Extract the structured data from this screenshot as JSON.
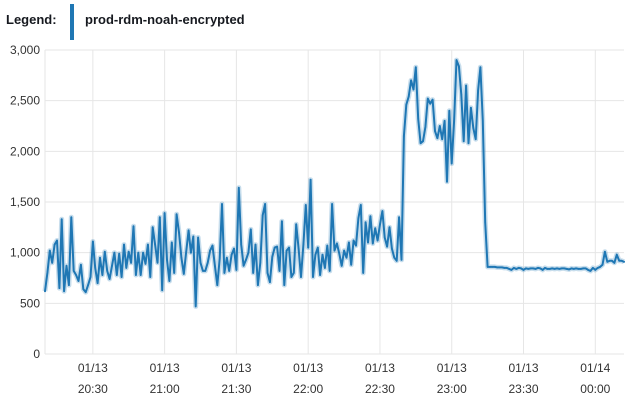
{
  "legend": {
    "label": "Legend:",
    "series_name": "prod-rdm-noah-encrypted"
  },
  "colors": {
    "series": "#1f77b4",
    "grid": "#e6e6e6",
    "axis": "#333333"
  },
  "chart_data": {
    "type": "line",
    "title": "",
    "xlabel": "",
    "ylabel": "",
    "ylim": [
      0,
      3000
    ],
    "yticks": [
      {
        "value": 0,
        "label": "0"
      },
      {
        "value": 500,
        "label": "500"
      },
      {
        "value": 1000,
        "label": "1,000"
      },
      {
        "value": 1500,
        "label": "1,500"
      },
      {
        "value": 2000,
        "label": "2,000"
      },
      {
        "value": 2500,
        "label": "2,500"
      },
      {
        "value": 3000,
        "label": "3,000"
      }
    ],
    "xlim": [
      "2024-01-13 20:10",
      "2024-01-14 00:12"
    ],
    "xticks": [
      {
        "value": "2024-01-13 20:30",
        "line1": "01/13",
        "line2": "20:30"
      },
      {
        "value": "2024-01-13 21:00",
        "line1": "01/13",
        "line2": "21:00"
      },
      {
        "value": "2024-01-13 21:30",
        "line1": "01/13",
        "line2": "21:30"
      },
      {
        "value": "2024-01-13 22:00",
        "line1": "01/13",
        "line2": "22:00"
      },
      {
        "value": "2024-01-13 22:30",
        "line1": "01/13",
        "line2": "22:30"
      },
      {
        "value": "2024-01-13 23:00",
        "line1": "01/13",
        "line2": "23:00"
      },
      {
        "value": "2024-01-13 23:30",
        "line1": "01/13",
        "line2": "23:30"
      },
      {
        "value": "2024-01-14 00:00",
        "line1": "01/14",
        "line2": "00:00"
      }
    ],
    "grid": true,
    "legend_position": "top-left",
    "series": [
      {
        "name": "prod-rdm-noah-encrypted",
        "points": [
          [
            "2024-01-13 20:10",
            620
          ],
          [
            "2024-01-13 20:11",
            800
          ],
          [
            "2024-01-13 20:12",
            1020
          ],
          [
            "2024-01-13 20:13",
            900
          ],
          [
            "2024-01-13 20:14",
            1080
          ],
          [
            "2024-01-13 20:15",
            1120
          ],
          [
            "2024-01-13 20:16",
            650
          ],
          [
            "2024-01-13 20:17",
            1330
          ],
          [
            "2024-01-13 20:18",
            620
          ],
          [
            "2024-01-13 20:19",
            870
          ],
          [
            "2024-01-13 20:20",
            680
          ],
          [
            "2024-01-13 20:21",
            1350
          ],
          [
            "2024-01-13 20:22",
            820
          ],
          [
            "2024-01-13 20:23",
            780
          ],
          [
            "2024-01-13 20:24",
            720
          ],
          [
            "2024-01-13 20:25",
            880
          ],
          [
            "2024-01-13 20:26",
            640
          ],
          [
            "2024-01-13 20:27",
            610
          ],
          [
            "2024-01-13 20:28",
            680
          ],
          [
            "2024-01-13 20:29",
            760
          ],
          [
            "2024-01-13 20:30",
            1110
          ],
          [
            "2024-01-13 20:31",
            850
          ],
          [
            "2024-01-13 20:32",
            700
          ],
          [
            "2024-01-13 20:33",
            950
          ],
          [
            "2024-01-13 20:34",
            780
          ],
          [
            "2024-01-13 20:35",
            1010
          ],
          [
            "2024-01-13 20:36",
            820
          ],
          [
            "2024-01-13 20:37",
            740
          ],
          [
            "2024-01-13 20:38",
            870
          ],
          [
            "2024-01-13 20:39",
            1000
          ],
          [
            "2024-01-13 20:40",
            780
          ],
          [
            "2024-01-13 20:41",
            990
          ],
          [
            "2024-01-13 20:42",
            760
          ],
          [
            "2024-01-13 20:43",
            1080
          ],
          [
            "2024-01-13 20:44",
            850
          ],
          [
            "2024-01-13 20:45",
            1010
          ],
          [
            "2024-01-13 20:46",
            900
          ],
          [
            "2024-01-13 20:47",
            1260
          ],
          [
            "2024-01-13 20:48",
            780
          ],
          [
            "2024-01-13 20:49",
            1000
          ],
          [
            "2024-01-13 20:50",
            780
          ],
          [
            "2024-01-13 20:51",
            1000
          ],
          [
            "2024-01-13 20:52",
            890
          ],
          [
            "2024-01-13 20:53",
            1080
          ],
          [
            "2024-01-13 20:54",
            760
          ],
          [
            "2024-01-13 20:55",
            1250
          ],
          [
            "2024-01-13 20:56",
            1080
          ],
          [
            "2024-01-13 20:57",
            900
          ],
          [
            "2024-01-13 20:58",
            1350
          ],
          [
            "2024-01-13 20:59",
            630
          ],
          [
            "2024-01-13 21:00",
            1390
          ],
          [
            "2024-01-13 21:01",
            930
          ],
          [
            "2024-01-13 21:02",
            720
          ],
          [
            "2024-01-13 21:03",
            1100
          ],
          [
            "2024-01-13 21:04",
            800
          ],
          [
            "2024-01-13 21:05",
            1380
          ],
          [
            "2024-01-13 21:06",
            1200
          ],
          [
            "2024-01-13 21:07",
            950
          ],
          [
            "2024-01-13 21:08",
            790
          ],
          [
            "2024-01-13 21:09",
            1010
          ],
          [
            "2024-01-13 21:10",
            1220
          ],
          [
            "2024-01-13 21:11",
            1000
          ],
          [
            "2024-01-13 21:12",
            1160
          ],
          [
            "2024-01-13 21:13",
            470
          ],
          [
            "2024-01-13 21:14",
            1150
          ],
          [
            "2024-01-13 21:15",
            900
          ],
          [
            "2024-01-13 21:16",
            820
          ],
          [
            "2024-01-13 21:17",
            820
          ],
          [
            "2024-01-13 21:18",
            900
          ],
          [
            "2024-01-13 21:19",
            1020
          ],
          [
            "2024-01-13 21:20",
            1070
          ],
          [
            "2024-01-13 21:21",
            870
          ],
          [
            "2024-01-13 21:22",
            680
          ],
          [
            "2024-01-13 21:23",
            940
          ],
          [
            "2024-01-13 21:24",
            1480
          ],
          [
            "2024-01-13 21:25",
            800
          ],
          [
            "2024-01-13 21:26",
            950
          ],
          [
            "2024-01-13 21:27",
            820
          ],
          [
            "2024-01-13 21:28",
            980
          ],
          [
            "2024-01-13 21:29",
            1040
          ],
          [
            "2024-01-13 21:30",
            830
          ],
          [
            "2024-01-13 21:31",
            1640
          ],
          [
            "2024-01-13 21:32",
            1080
          ],
          [
            "2024-01-13 21:33",
            870
          ],
          [
            "2024-01-13 21:34",
            930
          ],
          [
            "2024-01-13 21:35",
            1000
          ],
          [
            "2024-01-13 21:36",
            1230
          ],
          [
            "2024-01-13 21:37",
            800
          ],
          [
            "2024-01-13 21:38",
            1080
          ],
          [
            "2024-01-13 21:39",
            680
          ],
          [
            "2024-01-13 21:40",
            900
          ],
          [
            "2024-01-13 21:41",
            1370
          ],
          [
            "2024-01-13 21:42",
            1480
          ],
          [
            "2024-01-13 21:43",
            800
          ],
          [
            "2024-01-13 21:44",
            710
          ],
          [
            "2024-01-13 21:45",
            960
          ],
          [
            "2024-01-13 21:46",
            1050
          ],
          [
            "2024-01-13 21:47",
            1060
          ],
          [
            "2024-01-13 21:48",
            820
          ],
          [
            "2024-01-13 21:49",
            1310
          ],
          [
            "2024-01-13 21:50",
            680
          ],
          [
            "2024-01-13 21:51",
            1020
          ],
          [
            "2024-01-13 21:52",
            1050
          ],
          [
            "2024-01-13 21:53",
            760
          ],
          [
            "2024-01-13 21:54",
            800
          ],
          [
            "2024-01-13 21:55",
            1280
          ],
          [
            "2024-01-13 21:56",
            1040
          ],
          [
            "2024-01-13 21:57",
            760
          ],
          [
            "2024-01-13 21:58",
            1080
          ],
          [
            "2024-01-13 21:59",
            1470
          ],
          [
            "2024-01-13 22:00",
            1050
          ],
          [
            "2024-01-13 22:01",
            1720
          ],
          [
            "2024-01-13 22:02",
            760
          ],
          [
            "2024-01-13 22:03",
            980
          ],
          [
            "2024-01-13 22:04",
            1050
          ],
          [
            "2024-01-13 22:05",
            780
          ],
          [
            "2024-01-13 22:06",
            980
          ],
          [
            "2024-01-13 22:07",
            850
          ],
          [
            "2024-01-13 22:08",
            1070
          ],
          [
            "2024-01-13 22:09",
            820
          ],
          [
            "2024-01-13 22:10",
            1480
          ],
          [
            "2024-01-13 22:11",
            1020
          ],
          [
            "2024-01-13 22:12",
            1090
          ],
          [
            "2024-01-13 22:13",
            990
          ],
          [
            "2024-01-13 22:14",
            870
          ],
          [
            "2024-01-13 22:15",
            1020
          ],
          [
            "2024-01-13 22:16",
            950
          ],
          [
            "2024-01-13 22:17",
            1100
          ],
          [
            "2024-01-13 22:18",
            880
          ],
          [
            "2024-01-13 22:19",
            1120
          ],
          [
            "2024-01-13 22:20",
            1070
          ],
          [
            "2024-01-13 22:21",
            1340
          ],
          [
            "2024-01-13 22:22",
            1470
          ],
          [
            "2024-01-13 22:23",
            800
          ],
          [
            "2024-01-13 22:24",
            1300
          ],
          [
            "2024-01-13 22:25",
            1100
          ],
          [
            "2024-01-13 22:26",
            1360
          ],
          [
            "2024-01-13 22:27",
            1090
          ],
          [
            "2024-01-13 22:28",
            1240
          ],
          [
            "2024-01-13 22:29",
            1120
          ],
          [
            "2024-01-13 22:30",
            1280
          ],
          [
            "2024-01-13 22:31",
            1410
          ],
          [
            "2024-01-13 22:32",
            1150
          ],
          [
            "2024-01-13 22:33",
            1060
          ],
          [
            "2024-01-13 22:34",
            1250
          ],
          [
            "2024-01-13 22:35",
            1040
          ],
          [
            "2024-01-13 22:36",
            950
          ],
          [
            "2024-01-13 22:37",
            920
          ],
          [
            "2024-01-13 22:38",
            1350
          ],
          [
            "2024-01-13 22:39",
            930
          ],
          [
            "2024-01-13 22:40",
            2150
          ],
          [
            "2024-01-13 22:41",
            2460
          ],
          [
            "2024-01-13 22:42",
            2540
          ],
          [
            "2024-01-13 22:43",
            2700
          ],
          [
            "2024-01-13 22:44",
            2610
          ],
          [
            "2024-01-13 22:45",
            2830
          ],
          [
            "2024-01-13 22:46",
            2320
          ],
          [
            "2024-01-13 22:47",
            2080
          ],
          [
            "2024-01-13 22:48",
            2100
          ],
          [
            "2024-01-13 22:49",
            2240
          ],
          [
            "2024-01-13 22:50",
            2520
          ],
          [
            "2024-01-13 22:51",
            2470
          ],
          [
            "2024-01-13 22:52",
            2510
          ],
          [
            "2024-01-13 22:53",
            2200
          ],
          [
            "2024-01-13 22:54",
            2130
          ],
          [
            "2024-01-13 22:55",
            2250
          ],
          [
            "2024-01-13 22:56",
            2120
          ],
          [
            "2024-01-13 22:57",
            2300
          ],
          [
            "2024-01-13 22:58",
            1700
          ],
          [
            "2024-01-13 22:59",
            2400
          ],
          [
            "2024-01-13 23:00",
            1880
          ],
          [
            "2024-01-13 23:01",
            2300
          ],
          [
            "2024-01-13 23:02",
            2900
          ],
          [
            "2024-01-13 23:03",
            2840
          ],
          [
            "2024-01-13 23:04",
            2560
          ],
          [
            "2024-01-13 23:05",
            2100
          ],
          [
            "2024-01-13 23:06",
            2650
          ],
          [
            "2024-01-13 23:07",
            2080
          ],
          [
            "2024-01-13 23:08",
            2430
          ],
          [
            "2024-01-13 23:09",
            2230
          ],
          [
            "2024-01-13 23:10",
            2120
          ],
          [
            "2024-01-13 23:11",
            2600
          ],
          [
            "2024-01-13 23:12",
            2830
          ],
          [
            "2024-01-13 23:13",
            2300
          ],
          [
            "2024-01-13 23:14",
            1300
          ],
          [
            "2024-01-13 23:15",
            860
          ],
          [
            "2024-01-13 23:16",
            860
          ],
          [
            "2024-01-13 23:17",
            860
          ],
          [
            "2024-01-13 23:18",
            860
          ],
          [
            "2024-01-13 23:19",
            855
          ],
          [
            "2024-01-13 23:20",
            855
          ],
          [
            "2024-01-13 23:21",
            855
          ],
          [
            "2024-01-13 23:22",
            850
          ],
          [
            "2024-01-13 23:23",
            850
          ],
          [
            "2024-01-13 23:24",
            840
          ],
          [
            "2024-01-13 23:25",
            830
          ],
          [
            "2024-01-13 23:26",
            850
          ],
          [
            "2024-01-13 23:27",
            840
          ],
          [
            "2024-01-13 23:28",
            850
          ],
          [
            "2024-01-13 23:29",
            845
          ],
          [
            "2024-01-13 23:30",
            830
          ],
          [
            "2024-01-13 23:31",
            845
          ],
          [
            "2024-01-13 23:32",
            840
          ],
          [
            "2024-01-13 23:33",
            845
          ],
          [
            "2024-01-13 23:34",
            845
          ],
          [
            "2024-01-13 23:35",
            840
          ],
          [
            "2024-01-13 23:36",
            850
          ],
          [
            "2024-01-13 23:37",
            845
          ],
          [
            "2024-01-13 23:38",
            830
          ],
          [
            "2024-01-13 23:39",
            850
          ],
          [
            "2024-01-13 23:40",
            840
          ],
          [
            "2024-01-13 23:41",
            840
          ],
          [
            "2024-01-13 23:42",
            845
          ],
          [
            "2024-01-13 23:43",
            840
          ],
          [
            "2024-01-13 23:44",
            845
          ],
          [
            "2024-01-13 23:45",
            840
          ],
          [
            "2024-01-13 23:46",
            845
          ],
          [
            "2024-01-13 23:47",
            845
          ],
          [
            "2024-01-13 23:48",
            840
          ],
          [
            "2024-01-13 23:49",
            835
          ],
          [
            "2024-01-13 23:50",
            845
          ],
          [
            "2024-01-13 23:51",
            840
          ],
          [
            "2024-01-13 23:52",
            845
          ],
          [
            "2024-01-13 23:53",
            840
          ],
          [
            "2024-01-13 23:54",
            840
          ],
          [
            "2024-01-13 23:55",
            845
          ],
          [
            "2024-01-13 23:56",
            845
          ],
          [
            "2024-01-13 23:57",
            830
          ],
          [
            "2024-01-13 23:58",
            820
          ],
          [
            "2024-01-13 23:59",
            850
          ],
          [
            "2024-01-14 00:00",
            830
          ],
          [
            "2024-01-14 00:01",
            850
          ],
          [
            "2024-01-14 00:02",
            860
          ],
          [
            "2024-01-14 00:03",
            880
          ],
          [
            "2024-01-14 00:04",
            1010
          ],
          [
            "2024-01-14 00:05",
            910
          ],
          [
            "2024-01-14 00:06",
            920
          ],
          [
            "2024-01-14 00:07",
            920
          ],
          [
            "2024-01-14 00:08",
            900
          ],
          [
            "2024-01-14 00:09",
            980
          ],
          [
            "2024-01-14 00:10",
            920
          ],
          [
            "2024-01-14 00:11",
            920
          ],
          [
            "2024-01-14 00:12",
            910
          ]
        ]
      }
    ]
  }
}
